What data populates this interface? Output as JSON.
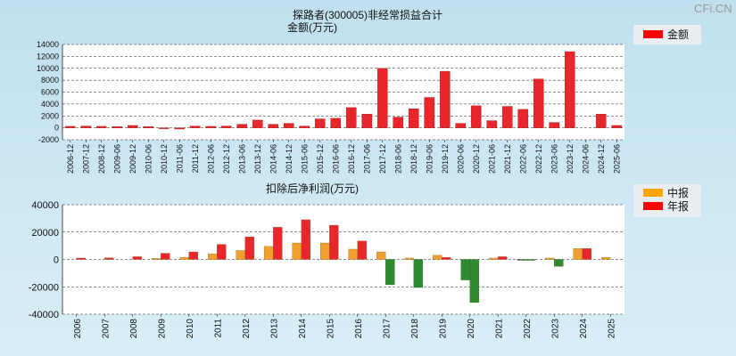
{
  "watermark": "CFi.CN",
  "chart_data": [
    {
      "type": "bar",
      "title": "探路者(300005)非经常损益合计",
      "ylabel": "金额(万元)",
      "legend": [
        "金额"
      ],
      "colors": {
        "bar": "#e8262c",
        "legend": "#ff0000"
      },
      "ylim": [
        -2000,
        14000
      ],
      "yticks": [
        -2000,
        0,
        2000,
        4000,
        6000,
        8000,
        10000,
        12000,
        14000
      ],
      "categories": [
        "2006-12",
        "2007-12",
        "2008-12",
        "2009-06",
        "2009-12",
        "2010-06",
        "2010-12",
        "2011-06",
        "2011-12",
        "2012-06",
        "2012-12",
        "2013-06",
        "2013-12",
        "2014-06",
        "2014-12",
        "2015-06",
        "2015-12",
        "2016-06",
        "2016-12",
        "2017-06",
        "2017-12",
        "2018-06",
        "2018-12",
        "2019-06",
        "2019-12",
        "2020-06",
        "2020-12",
        "2021-06",
        "2021-12",
        "2022-06",
        "2022-12",
        "2023-06",
        "2023-12",
        "2024-06",
        "2024-12",
        "2025-06"
      ],
      "values": [
        250,
        300,
        250,
        200,
        400,
        200,
        -150,
        -200,
        300,
        250,
        300,
        600,
        1300,
        600,
        750,
        300,
        1500,
        1600,
        3400,
        2300,
        10000,
        1800,
        3200,
        5100,
        9500,
        750,
        3700,
        1200,
        3600,
        3100,
        8200,
        900,
        12800,
        0,
        2300,
        400
      ]
    },
    {
      "type": "bar",
      "title": "扣除后净利润(万元)",
      "legend": [
        "中报",
        "年报"
      ],
      "colors": {
        "mid": "#f0a030",
        "annual": "#e8262c",
        "negative": "#2e8a2e",
        "legend_mid": "#ffa500",
        "legend_annual": "#ff0000"
      },
      "ylim": [
        -40000,
        40000
      ],
      "yticks": [
        -40000,
        -20000,
        0,
        20000,
        40000
      ],
      "categories": [
        "2006",
        "2007",
        "2008",
        "2009",
        "2010",
        "2011",
        "2012",
        "2013",
        "2014",
        "2015",
        "2016",
        "2017",
        "2018",
        "2019",
        "2020",
        "2021",
        "2022",
        "2023",
        "2024",
        "2025"
      ],
      "series": [
        {
          "name": "中报",
          "values": [
            null,
            null,
            null,
            800,
            1600,
            4000,
            6500,
            9500,
            12000,
            12000,
            7500,
            5500,
            1000,
            3000,
            -15000,
            1000,
            -500,
            1000,
            8000,
            1500
          ]
        },
        {
          "name": "年报",
          "values": [
            1000,
            1200,
            2000,
            4500,
            5500,
            11000,
            16500,
            23500,
            29000,
            25000,
            13500,
            -18500,
            -20500,
            1500,
            -31500,
            2000,
            -500,
            -5000,
            8000,
            null
          ]
        }
      ]
    }
  ]
}
